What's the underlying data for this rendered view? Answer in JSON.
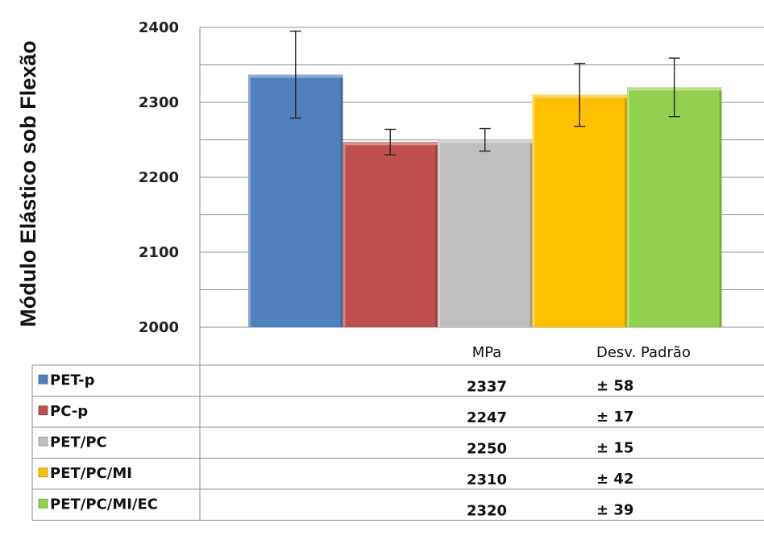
{
  "chart_data": {
    "type": "bar",
    "ylabel": "Módulo Elástico sob Flexão",
    "ylim": [
      2000,
      2400
    ],
    "yticks": [
      2000,
      2100,
      2200,
      2300,
      2400
    ],
    "grid": true,
    "categories": [
      "PET-p",
      "PC-p",
      "PET/PC",
      "PET/PC/MI",
      "PET/PC/MI/EC"
    ],
    "values": [
      2337,
      2247,
      2250,
      2310,
      2320
    ],
    "errors": [
      58,
      17,
      15,
      42,
      39
    ],
    "colors": [
      "#4f81bd",
      "#c0504d",
      "#bfbfbf",
      "#ffc000",
      "#92d050"
    ],
    "table": {
      "headers": [
        "MPa",
        "Desv. Padrão"
      ],
      "rows": [
        {
          "label": "PET-p",
          "mpa": "2337",
          "sd": "± 58"
        },
        {
          "label": "PC-p",
          "mpa": "2247",
          "sd": "± 17"
        },
        {
          "label": "PET/PC",
          "mpa": "2250",
          "sd": "± 15"
        },
        {
          "label": "PET/PC/MI",
          "mpa": "2310",
          "sd": "± 42"
        },
        {
          "label": "PET/PC/MI/EC",
          "mpa": "2320",
          "sd": "± 39"
        }
      ]
    }
  }
}
